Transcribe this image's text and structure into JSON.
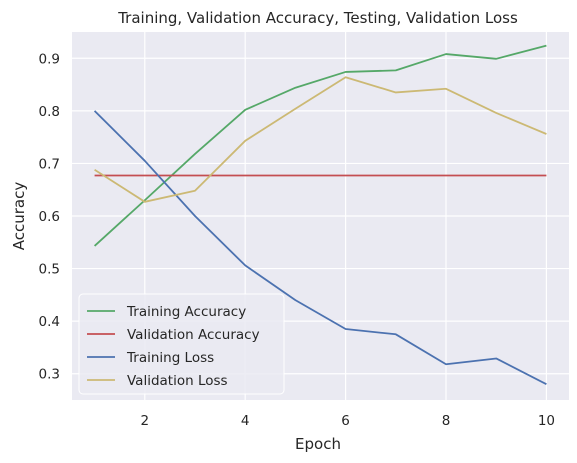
{
  "chart_data": {
    "type": "line",
    "title": "Training, Validation Accuracy, Testing, Validation Loss",
    "xlabel": "Epoch",
    "ylabel": "Accuracy",
    "xlim": [
      0.55,
      10.45
    ],
    "ylim": [
      0.25,
      0.95
    ],
    "xticks": [
      2,
      4,
      6,
      8,
      10
    ],
    "yticks": [
      0.3,
      0.4,
      0.5,
      0.6,
      0.7,
      0.8,
      0.9
    ],
    "grid": true,
    "legend_position": "lower-left",
    "background": "#eaeaf2",
    "x": [
      1,
      2,
      3,
      4,
      5,
      6,
      7,
      8,
      9,
      10
    ],
    "series": [
      {
        "name": "Training Accuracy",
        "color": "#55a868",
        "values": [
          0.543,
          0.63,
          0.718,
          0.802,
          0.844,
          0.874,
          0.877,
          0.908,
          0.899,
          0.924
        ]
      },
      {
        "name": "Validation Accuracy",
        "color": "#c44e52",
        "values": [
          0.677,
          0.677,
          0.677,
          0.677,
          0.677,
          0.677,
          0.677,
          0.677,
          0.677,
          0.677
        ]
      },
      {
        "name": "Training Loss",
        "color": "#4c72b0",
        "values": [
          0.8,
          0.705,
          0.6,
          0.506,
          0.44,
          0.385,
          0.375,
          0.318,
          0.329,
          0.28
        ]
      },
      {
        "name": "Validation Loss",
        "color": "#ccb974",
        "values": [
          0.688,
          0.627,
          0.648,
          0.743,
          0.804,
          0.864,
          0.835,
          0.842,
          0.796,
          0.756
        ]
      }
    ]
  }
}
